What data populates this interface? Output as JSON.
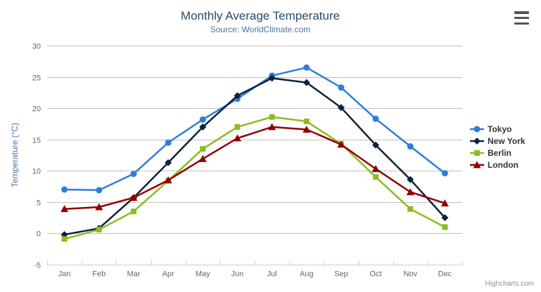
{
  "header": {
    "title": "Monthly Average Temperature",
    "subtitle": "Source: WorldClimate.com"
  },
  "icons": {
    "context_menu": "hamburger-menu-icon"
  },
  "credits_label": "Highcharts.com",
  "colors": {
    "title": "#274b6d",
    "subtitle": "#4d759e",
    "axis_title": "#4d759e",
    "tick_label": "#666666",
    "gridline": "#c0c0c0",
    "axis_line": "#c0d0e0",
    "legend_text": "#333333",
    "credits": "#909090"
  },
  "chart_data": {
    "type": "line",
    "title": "Monthly Average Temperature",
    "subtitle": "Source: WorldClimate.com",
    "xlabel": "",
    "ylabel": "Temperature (°C)",
    "categories": [
      "Jan",
      "Feb",
      "Mar",
      "Apr",
      "May",
      "Jun",
      "Jul",
      "Aug",
      "Sep",
      "Oct",
      "Nov",
      "Dec"
    ],
    "ylim": [
      -5,
      30
    ],
    "y_tick_interval": 5,
    "y_ticks": [
      30,
      25,
      20,
      15,
      10,
      5,
      0,
      -5
    ],
    "grid": true,
    "legend_position": "right",
    "series": [
      {
        "name": "Tokyo",
        "color": "#2f7ed8",
        "marker": "circle",
        "values": [
          7.0,
          6.9,
          9.5,
          14.5,
          18.2,
          21.5,
          25.2,
          26.5,
          23.3,
          18.3,
          13.9,
          9.6
        ]
      },
      {
        "name": "New York",
        "color": "#0d233a",
        "marker": "diamond",
        "values": [
          -0.2,
          0.8,
          5.7,
          11.3,
          17.0,
          22.0,
          24.8,
          24.1,
          20.1,
          14.1,
          8.6,
          2.5
        ]
      },
      {
        "name": "Berlin",
        "color": "#8bbc21",
        "marker": "square",
        "values": [
          -0.9,
          0.6,
          3.5,
          8.4,
          13.5,
          17.0,
          18.6,
          17.9,
          14.3,
          9.0,
          3.9,
          1.0
        ]
      },
      {
        "name": "London",
        "color": "#910000",
        "marker": "triangle",
        "values": [
          3.9,
          4.2,
          5.7,
          8.5,
          11.9,
          15.2,
          17.0,
          16.6,
          14.2,
          10.3,
          6.6,
          4.8
        ]
      }
    ],
    "credits": "Highcharts.com"
  }
}
